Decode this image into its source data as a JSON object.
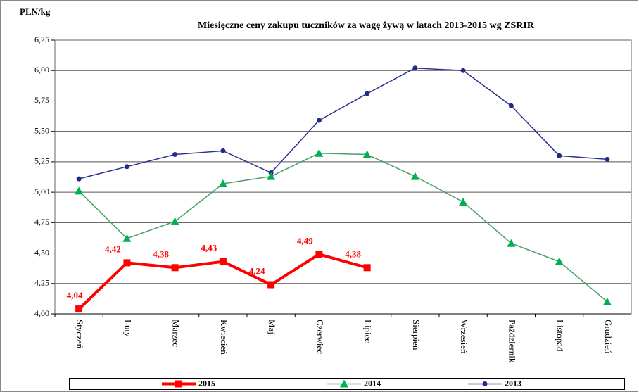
{
  "chart_data": {
    "type": "line",
    "title": "Miesięczne ceny zakupu tuczników za wagę żywą w latach 2013-2015 wg ZSRIR",
    "y_label": "PLN/kg",
    "categories": [
      "Styczeń",
      "Luty",
      "Marzec",
      "Kwiecień",
      "Maj",
      "Czerwiec",
      "Lipiec",
      "Sierpień",
      "Wrzesień",
      "Październik",
      "Listopad",
      "Grudzień"
    ],
    "series": [
      {
        "name": "2015",
        "color": "#ff0000",
        "marker": "square",
        "values": [
          4.04,
          4.42,
          4.38,
          4.43,
          4.24,
          4.49,
          4.38,
          null,
          null,
          null,
          null,
          null
        ],
        "value_labels": [
          "4,04",
          "4,42",
          "4,38",
          "4,43",
          "4,24",
          "4,49",
          "4,38",
          null,
          null,
          null,
          null,
          null
        ]
      },
      {
        "name": "2014",
        "color": "#4a9e6a",
        "marker": "triangle",
        "marker_color": "#00b050",
        "values": [
          5.01,
          4.62,
          4.76,
          5.07,
          5.13,
          5.32,
          5.31,
          5.13,
          4.92,
          4.58,
          4.43,
          4.1
        ]
      },
      {
        "name": "2013",
        "color": "#2e3192",
        "marker": "circle",
        "marker_color": "#1f2a8c",
        "values": [
          5.11,
          5.21,
          5.31,
          5.34,
          5.16,
          5.59,
          5.81,
          6.02,
          6.0,
          5.71,
          5.3,
          5.27
        ]
      }
    ],
    "ylim": [
      4.0,
      6.25
    ],
    "yticks": [
      {
        "value": 4.0,
        "label": "4,00"
      },
      {
        "value": 4.25,
        "label": "4,25"
      },
      {
        "value": 4.5,
        "label": "4,50"
      },
      {
        "value": 4.75,
        "label": "4,75"
      },
      {
        "value": 5.0,
        "label": "5,00"
      },
      {
        "value": 5.25,
        "label": "5,25"
      },
      {
        "value": 5.5,
        "label": "5,50"
      },
      {
        "value": 5.75,
        "label": "5,75"
      },
      {
        "value": 6.0,
        "label": "6,00"
      },
      {
        "value": 6.25,
        "label": "6,25"
      }
    ],
    "grid": true,
    "legend": "bottom"
  }
}
